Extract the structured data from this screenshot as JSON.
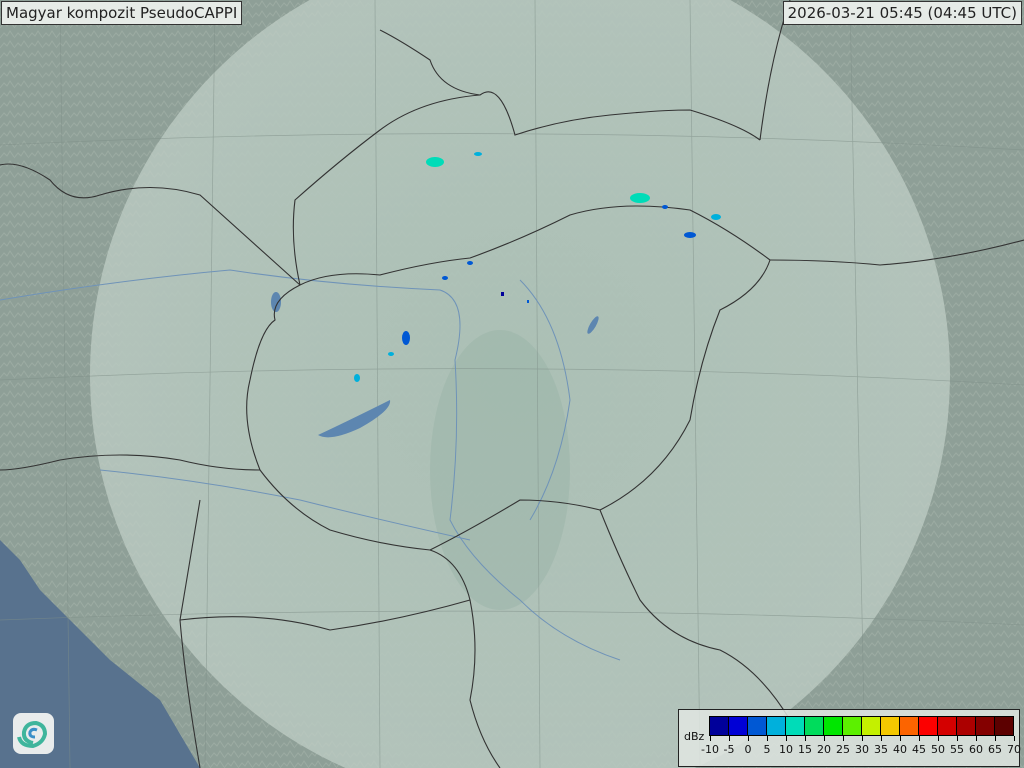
{
  "header": {
    "title": "Magyar kompozit  PseudoCAPPI",
    "timestamp": "2026-03-21 05:45 (04:45 UTC)"
  },
  "legend": {
    "unit": "dBz",
    "ticks": [
      "-10",
      "-5",
      "0",
      "5",
      "10",
      "15",
      "20",
      "25",
      "30",
      "35",
      "40",
      "45",
      "50",
      "55",
      "60",
      "65",
      "70"
    ],
    "colors": [
      "#00009a",
      "#0000d6",
      "#0058d4",
      "#00b0dc",
      "#00dcb8",
      "#00dc5c",
      "#00e600",
      "#5cf000",
      "#c4f000",
      "#f4c800",
      "#fc6400",
      "#fc0000",
      "#d40000",
      "#ac0000",
      "#840000",
      "#5c0000"
    ]
  },
  "colors": {
    "land": "#8e9f97",
    "radar_coverage": "#b4c6bd",
    "sea": "#58728e",
    "borders": "#333333",
    "rivers": "#6f93b8",
    "lakes": "#5d86b0"
  },
  "logo": {
    "icon": "swirl-logo-icon"
  }
}
